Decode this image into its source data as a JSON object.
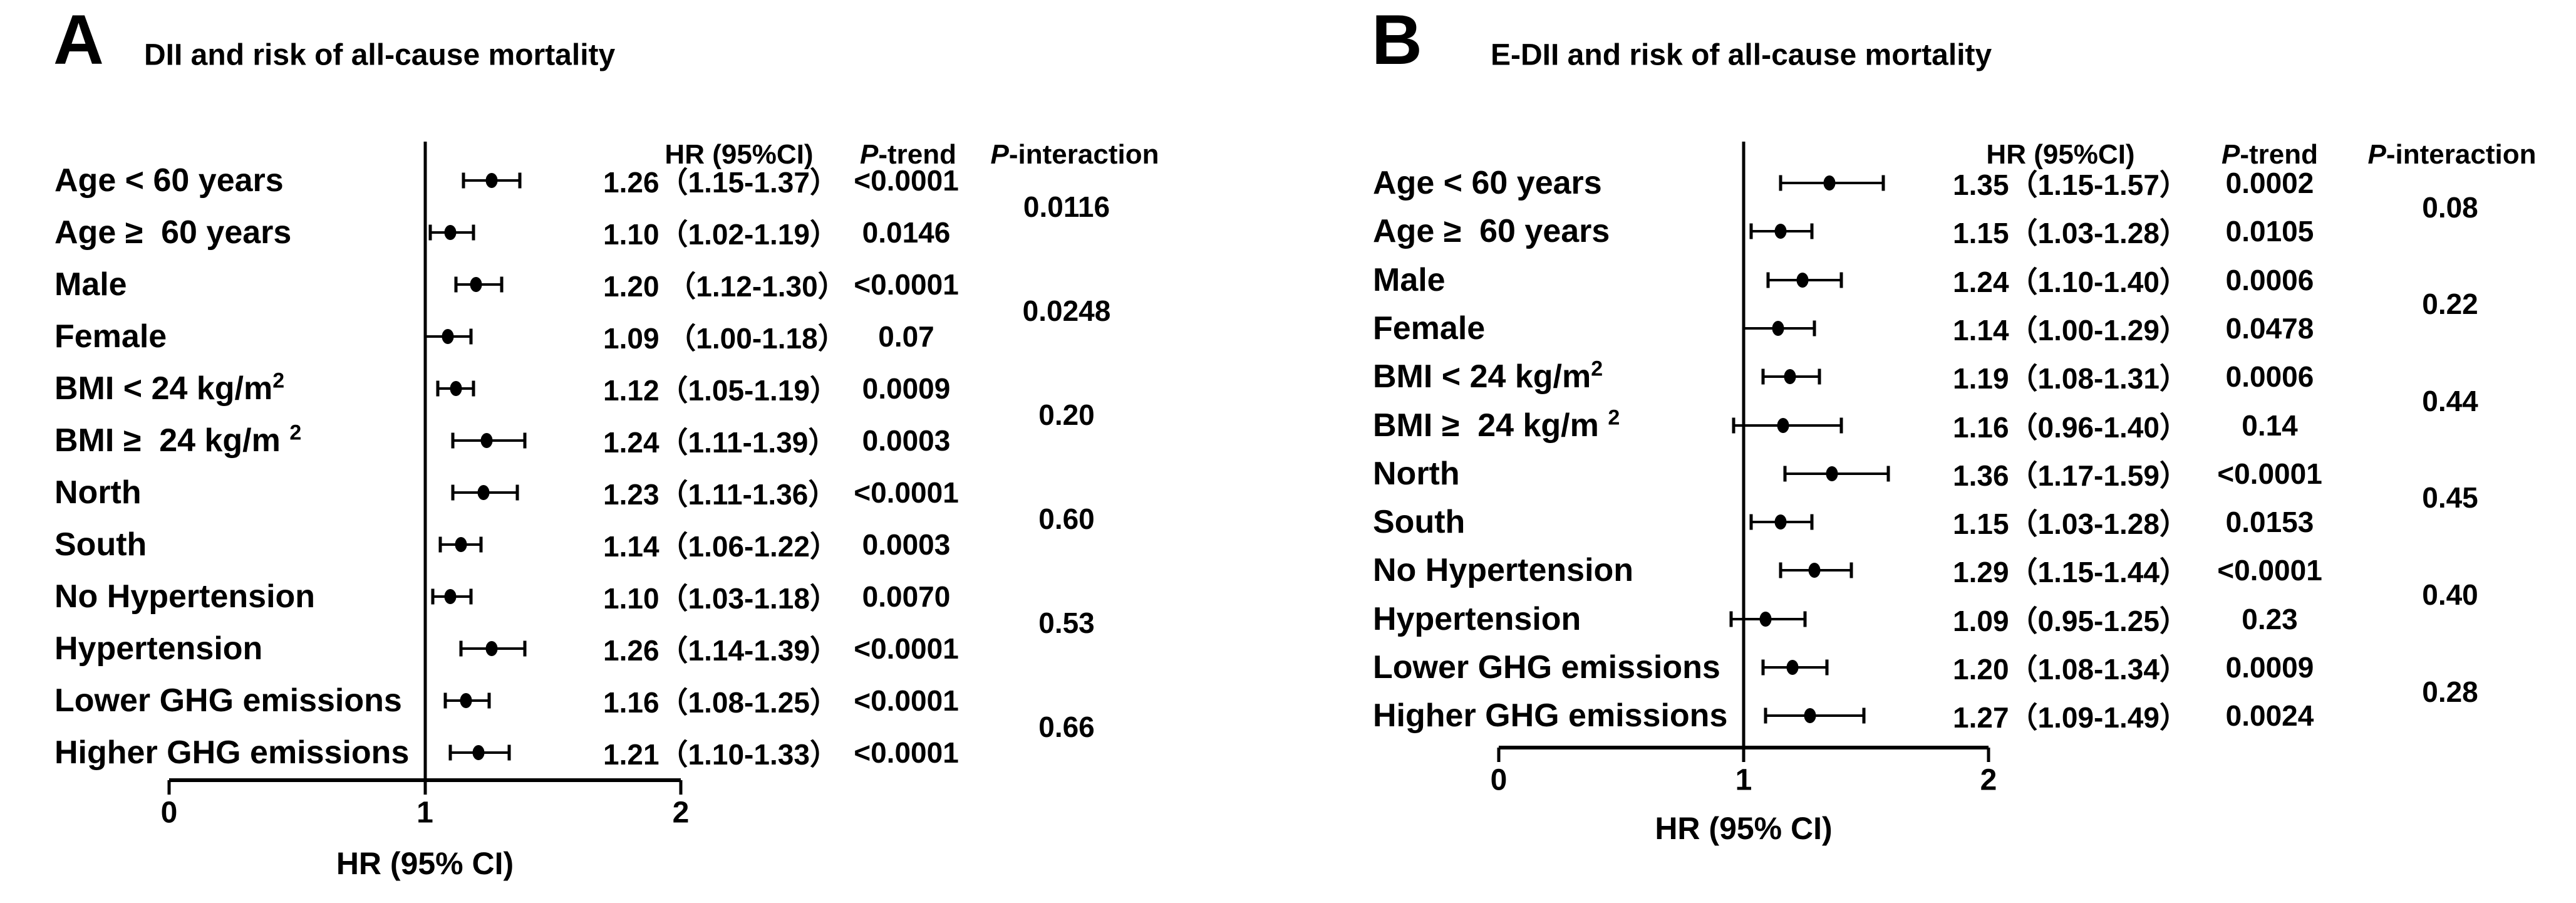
{
  "page": {
    "background": "#ffffff",
    "text_color": "#000000"
  },
  "chart_data": [
    {
      "type": "forest",
      "panel_letter": "A",
      "title": "DII and risk of all-cause mortality",
      "col_headers": {
        "hr": "HR (95%CI)",
        "p_trend_italic": "P",
        "p_trend_rest": "-trend",
        "p_interaction_italic": "P",
        "p_interaction_rest": "-interaction"
      },
      "xlabel": "HR (95% CI)",
      "axis": {
        "min": 0,
        "max": 2,
        "ticks": [
          "0",
          "1",
          "2"
        ],
        "refline": 1,
        "grid": false
      },
      "rows": [
        {
          "label": "Age < 60 years",
          "label_sup": "",
          "hr": 1.26,
          "lo": 1.15,
          "hi": 1.37,
          "hr_text": "1.26（1.15-1.37）",
          "p_trend": "<0.0001"
        },
        {
          "label": "Age ≥  60 years",
          "label_sup": "",
          "hr": 1.1,
          "lo": 1.02,
          "hi": 1.19,
          "hr_text": "1.10（1.02-1.19）",
          "p_trend": "0.0146"
        },
        {
          "label": "Male",
          "label_sup": "",
          "hr": 1.2,
          "lo": 1.12,
          "hi": 1.3,
          "hr_text": "1.20 （1.12-1.30）",
          "p_trend": "<0.0001"
        },
        {
          "label": "Female",
          "label_sup": "",
          "hr": 1.09,
          "lo": 1.0,
          "hi": 1.18,
          "hr_text": "1.09 （1.00-1.18）",
          "p_trend": "0.07"
        },
        {
          "label": "BMI < 24 kg/m",
          "label_sup": "2",
          "hr": 1.12,
          "lo": 1.05,
          "hi": 1.19,
          "hr_text": "1.12（1.05-1.19）",
          "p_trend": "0.0009"
        },
        {
          "label": "BMI ≥  24 kg/m ",
          "label_sup": "2",
          "hr": 1.24,
          "lo": 1.11,
          "hi": 1.39,
          "hr_text": "1.24（1.11-1.39）",
          "p_trend": "0.0003"
        },
        {
          "label": "North",
          "label_sup": "",
          "hr": 1.23,
          "lo": 1.11,
          "hi": 1.36,
          "hr_text": "1.23（1.11-1.36）",
          "p_trend": "<0.0001"
        },
        {
          "label": "South",
          "label_sup": "",
          "hr": 1.14,
          "lo": 1.06,
          "hi": 1.22,
          "hr_text": "1.14（1.06-1.22）",
          "p_trend": "0.0003"
        },
        {
          "label": "No Hypertension",
          "label_sup": "",
          "hr": 1.1,
          "lo": 1.03,
          "hi": 1.18,
          "hr_text": "1.10（1.03-1.18）",
          "p_trend": "0.0070"
        },
        {
          "label": "Hypertension",
          "label_sup": "",
          "hr": 1.26,
          "lo": 1.14,
          "hi": 1.39,
          "hr_text": "1.26（1.14-1.39）",
          "p_trend": "<0.0001"
        },
        {
          "label": "Lower GHG emissions",
          "label_sup": "",
          "hr": 1.16,
          "lo": 1.08,
          "hi": 1.25,
          "hr_text": "1.16（1.08-1.25）",
          "p_trend": "<0.0001"
        },
        {
          "label": "Higher GHG emissions",
          "label_sup": "",
          "hr": 1.21,
          "lo": 1.1,
          "hi": 1.33,
          "hr_text": "1.21（1.10-1.33）",
          "p_trend": "<0.0001"
        }
      ],
      "p_interactions": [
        "0.0116",
        "0.0248",
        "0.20",
        "0.60",
        "0.53",
        "0.66"
      ]
    },
    {
      "type": "forest",
      "panel_letter": "B",
      "title": "E-DII and risk of all-cause mortality",
      "col_headers": {
        "hr": "HR (95%CI)",
        "p_trend_italic": "P",
        "p_trend_rest": "-trend",
        "p_interaction_italic": "P",
        "p_interaction_rest": "-interaction"
      },
      "xlabel": "HR (95% CI)",
      "axis": {
        "min": 0,
        "max": 2,
        "ticks": [
          "0",
          "1",
          "2"
        ],
        "refline": 1,
        "grid": false
      },
      "rows": [
        {
          "label": "Age < 60 years",
          "label_sup": "",
          "hr": 1.35,
          "lo": 1.15,
          "hi": 1.57,
          "hr_text": "1.35（1.15-1.57）",
          "p_trend": "0.0002"
        },
        {
          "label": "Age ≥  60 years",
          "label_sup": "",
          "hr": 1.15,
          "lo": 1.03,
          "hi": 1.28,
          "hr_text": "1.15（1.03-1.28）",
          "p_trend": "0.0105"
        },
        {
          "label": "Male",
          "label_sup": "",
          "hr": 1.24,
          "lo": 1.1,
          "hi": 1.4,
          "hr_text": "1.24（1.10-1.40）",
          "p_trend": "0.0006"
        },
        {
          "label": "Female",
          "label_sup": "",
          "hr": 1.14,
          "lo": 1.0,
          "hi": 1.29,
          "hr_text": "1.14（1.00-1.29）",
          "p_trend": "0.0478"
        },
        {
          "label": "BMI < 24 kg/m",
          "label_sup": "2",
          "hr": 1.19,
          "lo": 1.08,
          "hi": 1.31,
          "hr_text": "1.19（1.08-1.31）",
          "p_trend": "0.0006"
        },
        {
          "label": "BMI ≥  24 kg/m ",
          "label_sup": "2",
          "hr": 1.16,
          "lo": 0.96,
          "hi": 1.4,
          "hr_text": "1.16（0.96-1.40）",
          "p_trend": "0.14"
        },
        {
          "label": "North",
          "label_sup": "",
          "hr": 1.36,
          "lo": 1.17,
          "hi": 1.59,
          "hr_text": "1.36（1.17-1.59）",
          "p_trend": "<0.0001"
        },
        {
          "label": "South",
          "label_sup": "",
          "hr": 1.15,
          "lo": 1.03,
          "hi": 1.28,
          "hr_text": "1.15（1.03-1.28）",
          "p_trend": "0.0153"
        },
        {
          "label": "No Hypertension",
          "label_sup": "",
          "hr": 1.29,
          "lo": 1.15,
          "hi": 1.44,
          "hr_text": "1.29（1.15-1.44）",
          "p_trend": "<0.0001"
        },
        {
          "label": "Hypertension",
          "label_sup": "",
          "hr": 1.09,
          "lo": 0.95,
          "hi": 1.25,
          "hr_text": "1.09（0.95-1.25）",
          "p_trend": "0.23"
        },
        {
          "label": "Lower GHG emissions",
          "label_sup": "",
          "hr": 1.2,
          "lo": 1.08,
          "hi": 1.34,
          "hr_text": "1.20（1.08-1.34）",
          "p_trend": "0.0009"
        },
        {
          "label": "Higher GHG emissions",
          "label_sup": "",
          "hr": 1.27,
          "lo": 1.09,
          "hi": 1.49,
          "hr_text": "1.27（1.09-1.49）",
          "p_trend": "0.0024"
        }
      ],
      "p_interactions": [
        "0.08",
        "0.22",
        "0.44",
        "0.45",
        "0.40",
        "0.28"
      ]
    }
  ]
}
